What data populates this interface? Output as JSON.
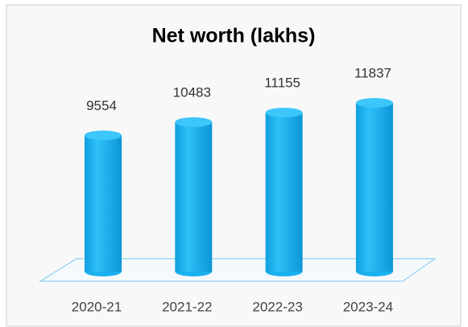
{
  "chart_data": {
    "type": "cylinder-bar",
    "title": "Net worth (lakhs)",
    "categories": [
      "2020-21",
      "2021-22",
      "2022-23",
      "2023-24"
    ],
    "values": [
      9554,
      10483,
      11155,
      11837
    ],
    "color": "#1ab0ee"
  }
}
